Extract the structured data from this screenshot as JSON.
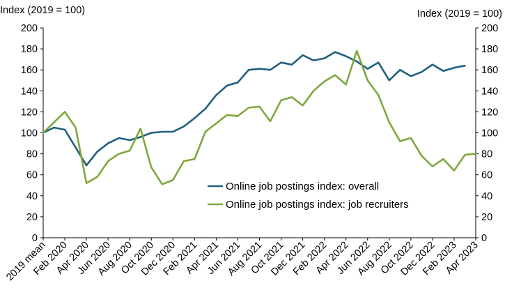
{
  "chart_data": {
    "type": "line",
    "ylabel_left": "Index (2019 = 100)",
    "ylabel_right": "Index (2019 = 100)",
    "ylim": [
      0,
      200
    ],
    "yticks": [
      0,
      20,
      40,
      60,
      80,
      100,
      120,
      140,
      160,
      180,
      200
    ],
    "grid": false,
    "legend_position": "lower-center",
    "x": [
      "2019 mean",
      "Jan 2020",
      "Feb 2020",
      "Mar 2020",
      "Apr 2020",
      "May 2020",
      "Jun 2020",
      "Jul 2020",
      "Aug 2020",
      "Sep 2020",
      "Oct 2020",
      "Nov 2020",
      "Dec 2020",
      "Jan 2021",
      "Feb 2021",
      "Mar 2021",
      "Apr 2021",
      "May 2021",
      "Jun 2021",
      "Jul 2021",
      "Aug 2021",
      "Sep 2021",
      "Oct 2021",
      "Nov 2021",
      "Dec 2021",
      "Jan 2022",
      "Feb 2022",
      "Mar 2022",
      "Apr 2022",
      "May 2022",
      "Jun 2022",
      "Jul 2022",
      "Aug 2022",
      "Sep 2022",
      "Oct 2022",
      "Nov 2022",
      "Dec 2022",
      "Jan 2023",
      "Feb 2023",
      "Mar 2023",
      "Apr 2023"
    ],
    "x_tick_labels": [
      "2019 mean",
      "Feb 2020",
      "Apr 2020",
      "Jun 2020",
      "Aug 2020",
      "Oct 2020",
      "Dec 2020",
      "Feb 2021",
      "Apr 2021",
      "Jun 2021",
      "Aug 2021",
      "Oct 2021",
      "Dec 2021",
      "Feb 2022",
      "Apr 2022",
      "Jun 2022",
      "Aug 2022",
      "Oct 2022",
      "Dec 2022",
      "Feb 2023",
      "Apr 2023"
    ],
    "series": [
      {
        "name": "Online job postings index: overall",
        "color": "#1f5f7f",
        "values": [
          100,
          105,
          103,
          86,
          69,
          82,
          90,
          95,
          93,
          96,
          100,
          101,
          101,
          106,
          114,
          123,
          136,
          145,
          148,
          160,
          161,
          160,
          167,
          165,
          174,
          169,
          171,
          177,
          173,
          168,
          161,
          167,
          150,
          160,
          154,
          158,
          165,
          159,
          162,
          164,
          null
        ]
      },
      {
        "name": "Online job postings index: job recruiters",
        "color": "#7fa83d",
        "values": [
          100,
          110,
          120,
          105,
          52,
          58,
          73,
          80,
          83,
          104,
          67,
          51,
          55,
          73,
          75,
          101,
          109,
          117,
          116,
          124,
          125,
          111,
          131,
          134,
          126,
          140,
          149,
          155,
          146,
          178,
          150,
          136,
          110,
          92,
          95,
          78,
          68,
          75,
          64,
          79,
          80
        ]
      }
    ]
  }
}
